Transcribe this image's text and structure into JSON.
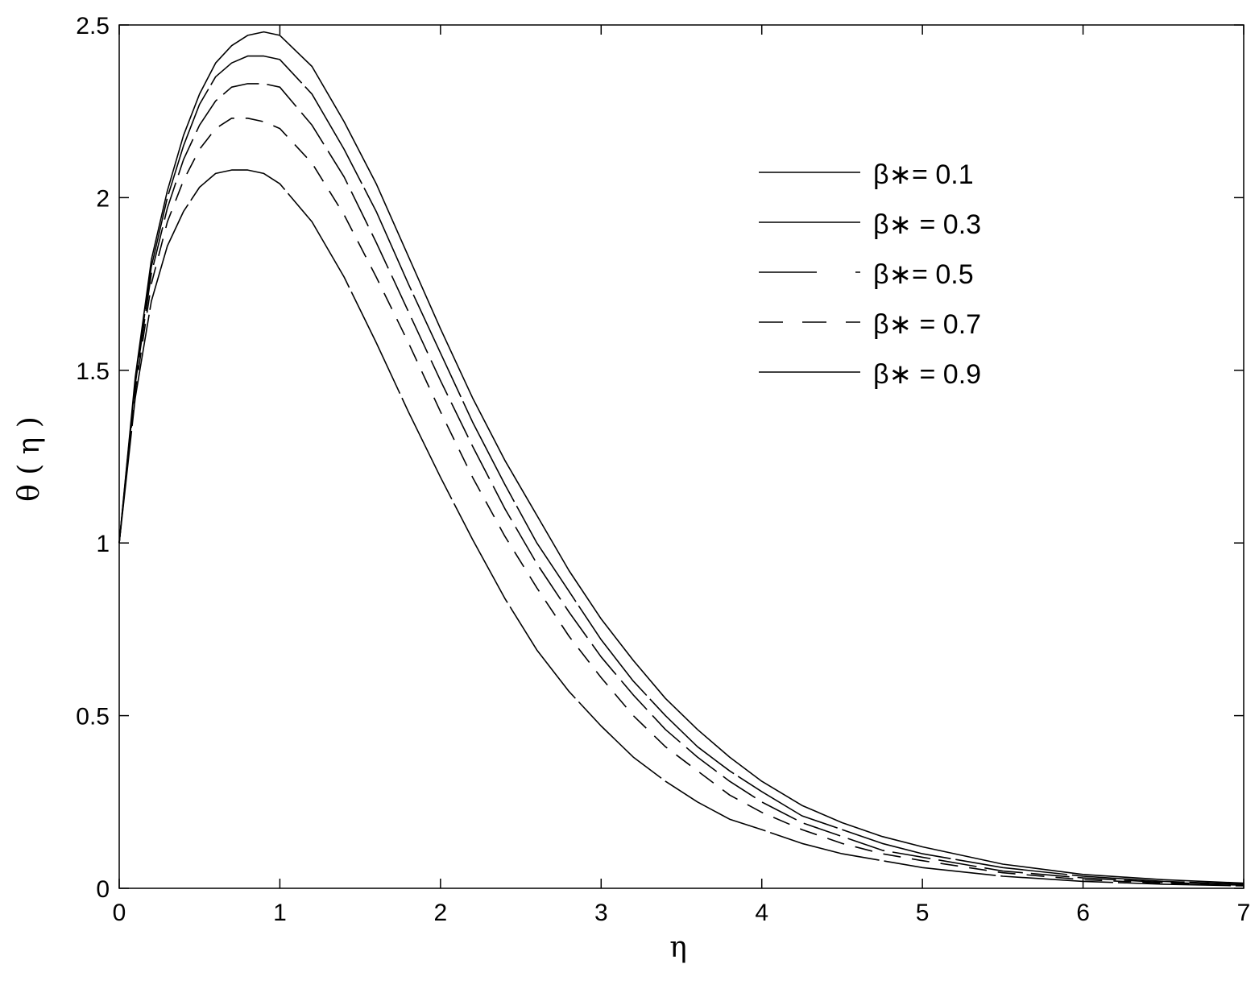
{
  "chart_data": {
    "type": "line",
    "xlabel": "η",
    "ylabel": "θ ( η )",
    "xlim": [
      0,
      7
    ],
    "ylim": [
      0,
      2.5
    ],
    "x_ticks": [
      "0",
      "1",
      "2",
      "3",
      "4",
      "5",
      "6",
      "7"
    ],
    "y_ticks": [
      "0",
      "0.5",
      "1",
      "1.5",
      "2",
      "2.5"
    ],
    "grid": false,
    "legend_position": "top-right",
    "x": [
      0,
      0.1,
      0.2,
      0.3,
      0.4,
      0.5,
      0.6,
      0.7,
      0.8,
      0.9,
      1.0,
      1.2,
      1.4,
      1.6,
      1.8,
      2.0,
      2.2,
      2.4,
      2.6,
      2.8,
      3.0,
      3.2,
      3.4,
      3.6,
      3.8,
      4.0,
      4.25,
      4.5,
      4.75,
      5.0,
      5.5,
      6.0,
      6.5,
      7.0
    ],
    "series": [
      {
        "name": "β∗= 0.1",
        "style": "solid",
        "values": [
          1.0,
          1.48,
          1.82,
          2.02,
          2.18,
          2.3,
          2.39,
          2.44,
          2.47,
          2.48,
          2.47,
          2.38,
          2.22,
          2.04,
          1.83,
          1.62,
          1.42,
          1.24,
          1.08,
          0.92,
          0.78,
          0.66,
          0.55,
          0.46,
          0.38,
          0.31,
          0.24,
          0.19,
          0.15,
          0.12,
          0.07,
          0.04,
          0.025,
          0.015
        ]
      },
      {
        "name": "β∗ = 0.3",
        "style": "solid-broken",
        "values": [
          1.0,
          1.47,
          1.8,
          2.0,
          2.15,
          2.27,
          2.35,
          2.39,
          2.41,
          2.41,
          2.4,
          2.3,
          2.14,
          1.96,
          1.75,
          1.55,
          1.35,
          1.17,
          1.0,
          0.86,
          0.72,
          0.6,
          0.5,
          0.41,
          0.34,
          0.28,
          0.21,
          0.17,
          0.13,
          0.1,
          0.06,
          0.035,
          0.02,
          0.012
        ]
      },
      {
        "name": "β∗= 0.5",
        "style": "long-dash",
        "values": [
          1.0,
          1.46,
          1.78,
          1.97,
          2.11,
          2.21,
          2.28,
          2.32,
          2.33,
          2.33,
          2.32,
          2.21,
          2.06,
          1.87,
          1.67,
          1.47,
          1.28,
          1.1,
          0.94,
          0.8,
          0.67,
          0.56,
          0.46,
          0.38,
          0.31,
          0.25,
          0.19,
          0.15,
          0.11,
          0.09,
          0.05,
          0.03,
          0.017,
          0.01
        ]
      },
      {
        "name": "β∗ = 0.7",
        "style": "dash",
        "values": [
          1.0,
          1.44,
          1.75,
          1.93,
          2.05,
          2.14,
          2.2,
          2.23,
          2.23,
          2.22,
          2.2,
          2.1,
          1.95,
          1.77,
          1.58,
          1.38,
          1.19,
          1.02,
          0.87,
          0.73,
          0.61,
          0.5,
          0.41,
          0.34,
          0.27,
          0.22,
          0.17,
          0.13,
          0.1,
          0.08,
          0.045,
          0.025,
          0.015,
          0.009
        ]
      },
      {
        "name": "β∗ = 0.9",
        "style": "solid-broken",
        "values": [
          1.0,
          1.42,
          1.7,
          1.86,
          1.96,
          2.03,
          2.07,
          2.08,
          2.08,
          2.07,
          2.04,
          1.93,
          1.77,
          1.58,
          1.38,
          1.19,
          1.01,
          0.84,
          0.69,
          0.57,
          0.47,
          0.38,
          0.31,
          0.25,
          0.2,
          0.17,
          0.13,
          0.1,
          0.08,
          0.06,
          0.035,
          0.02,
          0.012,
          0.007
        ]
      }
    ]
  }
}
